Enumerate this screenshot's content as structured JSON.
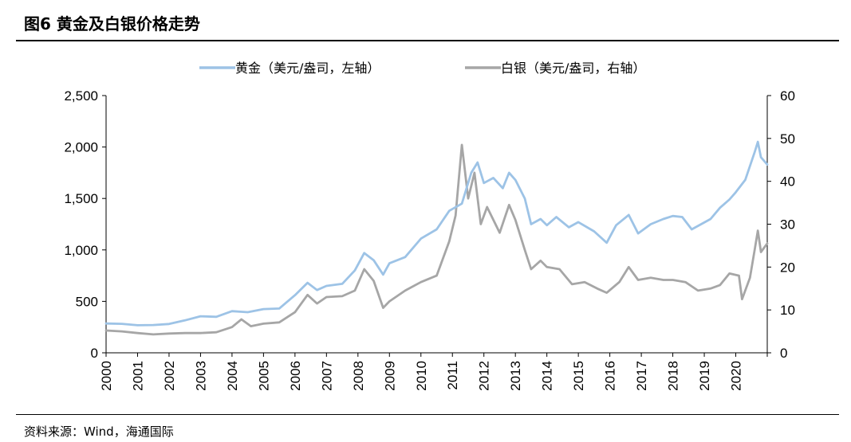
{
  "figure": {
    "title": "图6  黄金及白银价格走势",
    "source": "资料来源：Wind，海通国际"
  },
  "chart_data": {
    "type": "line",
    "x_ticks": [
      "2000",
      "2001",
      "2002",
      "2003",
      "2004",
      "2005",
      "2006",
      "2007",
      "2008",
      "2009",
      "2010",
      "2011",
      "2012",
      "2013",
      "2014",
      "2015",
      "2016",
      "2017",
      "2018",
      "2019",
      "2020"
    ],
    "y_left": {
      "ticks": [
        "0",
        "500",
        "1,000",
        "1,500",
        "2,000",
        "2,500"
      ],
      "range": [
        0,
        2500
      ]
    },
    "y_right": {
      "ticks": [
        "0",
        "10",
        "20",
        "30",
        "40",
        "50",
        "60"
      ],
      "range": [
        0,
        60
      ]
    },
    "x_range": [
      2000.0,
      2021.0
    ],
    "legend_position": "top",
    "series": [
      {
        "name": "黄金（美元/盎司，左轴）",
        "axis": "left",
        "color": "#9dc3e6",
        "points": [
          [
            2000.0,
            285
          ],
          [
            2000.5,
            282
          ],
          [
            2001.0,
            268
          ],
          [
            2001.5,
            270
          ],
          [
            2002.0,
            280
          ],
          [
            2002.5,
            315
          ],
          [
            2003.0,
            355
          ],
          [
            2003.5,
            350
          ],
          [
            2004.0,
            405
          ],
          [
            2004.5,
            395
          ],
          [
            2005.0,
            425
          ],
          [
            2005.5,
            430
          ],
          [
            2006.0,
            560
          ],
          [
            2006.4,
            680
          ],
          [
            2006.7,
            610
          ],
          [
            2007.0,
            650
          ],
          [
            2007.5,
            670
          ],
          [
            2007.9,
            800
          ],
          [
            2008.2,
            970
          ],
          [
            2008.5,
            900
          ],
          [
            2008.8,
            760
          ],
          [
            2009.0,
            870
          ],
          [
            2009.5,
            930
          ],
          [
            2010.0,
            1110
          ],
          [
            2010.5,
            1200
          ],
          [
            2010.9,
            1380
          ],
          [
            2011.3,
            1450
          ],
          [
            2011.6,
            1750
          ],
          [
            2011.8,
            1850
          ],
          [
            2012.0,
            1650
          ],
          [
            2012.3,
            1700
          ],
          [
            2012.6,
            1600
          ],
          [
            2012.8,
            1750
          ],
          [
            2013.0,
            1680
          ],
          [
            2013.3,
            1500
          ],
          [
            2013.5,
            1250
          ],
          [
            2013.8,
            1300
          ],
          [
            2014.0,
            1240
          ],
          [
            2014.3,
            1320
          ],
          [
            2014.7,
            1220
          ],
          [
            2015.0,
            1270
          ],
          [
            2015.5,
            1180
          ],
          [
            2015.9,
            1070
          ],
          [
            2016.2,
            1240
          ],
          [
            2016.6,
            1340
          ],
          [
            2016.9,
            1160
          ],
          [
            2017.3,
            1250
          ],
          [
            2017.7,
            1300
          ],
          [
            2018.0,
            1330
          ],
          [
            2018.3,
            1320
          ],
          [
            2018.6,
            1200
          ],
          [
            2018.9,
            1250
          ],
          [
            2019.2,
            1300
          ],
          [
            2019.5,
            1410
          ],
          [
            2019.8,
            1490
          ],
          [
            2020.0,
            1560
          ],
          [
            2020.3,
            1680
          ],
          [
            2020.6,
            1950
          ],
          [
            2020.7,
            2050
          ],
          [
            2020.8,
            1900
          ],
          [
            2021.0,
            1830
          ]
        ]
      },
      {
        "name": "白银（美元/盎司，右轴）",
        "axis": "right",
        "color": "#a6a6a6",
        "points": [
          [
            2000.0,
            5.2
          ],
          [
            2000.5,
            5.0
          ],
          [
            2001.0,
            4.6
          ],
          [
            2001.5,
            4.3
          ],
          [
            2002.0,
            4.5
          ],
          [
            2002.5,
            4.6
          ],
          [
            2003.0,
            4.6
          ],
          [
            2003.5,
            4.8
          ],
          [
            2004.0,
            6.0
          ],
          [
            2004.3,
            7.8
          ],
          [
            2004.6,
            6.2
          ],
          [
            2005.0,
            6.8
          ],
          [
            2005.5,
            7.1
          ],
          [
            2006.0,
            9.5
          ],
          [
            2006.4,
            13.5
          ],
          [
            2006.7,
            11.5
          ],
          [
            2007.0,
            13.0
          ],
          [
            2007.5,
            13.2
          ],
          [
            2007.9,
            14.5
          ],
          [
            2008.2,
            19.5
          ],
          [
            2008.5,
            16.8
          ],
          [
            2008.8,
            10.5
          ],
          [
            2009.0,
            12.0
          ],
          [
            2009.5,
            14.5
          ],
          [
            2010.0,
            16.5
          ],
          [
            2010.5,
            18.0
          ],
          [
            2010.9,
            26.0
          ],
          [
            2011.1,
            32.0
          ],
          [
            2011.3,
            48.5
          ],
          [
            2011.5,
            36.0
          ],
          [
            2011.7,
            42.0
          ],
          [
            2011.9,
            30.0
          ],
          [
            2012.1,
            34.0
          ],
          [
            2012.5,
            28.0
          ],
          [
            2012.8,
            34.5
          ],
          [
            2013.0,
            31.0
          ],
          [
            2013.3,
            24.0
          ],
          [
            2013.5,
            19.5
          ],
          [
            2013.8,
            21.5
          ],
          [
            2014.0,
            20.0
          ],
          [
            2014.4,
            19.5
          ],
          [
            2014.8,
            16.0
          ],
          [
            2015.2,
            16.5
          ],
          [
            2015.6,
            15.0
          ],
          [
            2015.9,
            14.0
          ],
          [
            2016.3,
            16.5
          ],
          [
            2016.6,
            20.0
          ],
          [
            2016.9,
            17.0
          ],
          [
            2017.3,
            17.5
          ],
          [
            2017.7,
            17.0
          ],
          [
            2018.0,
            17.0
          ],
          [
            2018.4,
            16.5
          ],
          [
            2018.8,
            14.5
          ],
          [
            2019.2,
            15.0
          ],
          [
            2019.5,
            15.8
          ],
          [
            2019.8,
            18.5
          ],
          [
            2020.1,
            18.0
          ],
          [
            2020.2,
            12.5
          ],
          [
            2020.45,
            17.5
          ],
          [
            2020.6,
            24.0
          ],
          [
            2020.7,
            28.5
          ],
          [
            2020.8,
            23.5
          ],
          [
            2021.0,
            25.5
          ]
        ]
      }
    ]
  }
}
